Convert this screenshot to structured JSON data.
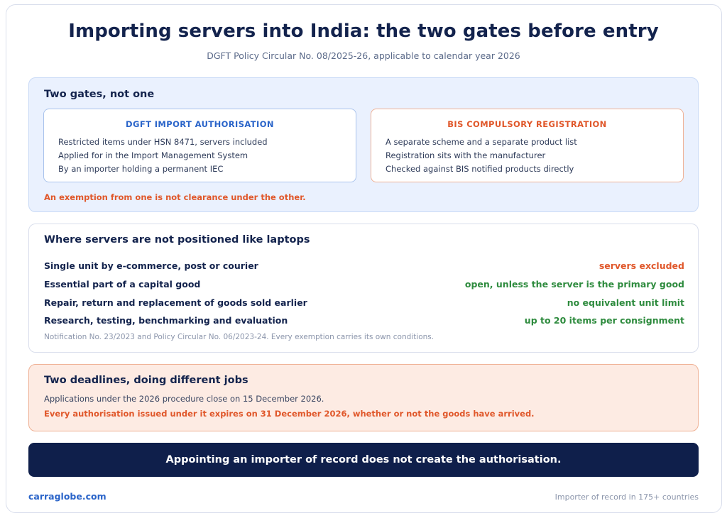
{
  "header": {
    "title": "Importing servers into India: the two gates before entry",
    "subtitle": "DGFT Policy Circular No. 08/2025-26, applicable to calendar year 2026"
  },
  "gates": {
    "heading": "Two gates, not one",
    "dgft": {
      "title": "DGFT IMPORT AUTHORISATION",
      "items": [
        "Restricted items under HSN 8471, servers included",
        "Applied for in the Import Management System",
        "By an importer holding a permanent IEC"
      ]
    },
    "bis": {
      "title": "BIS COMPULSORY REGISTRATION",
      "items": [
        "A separate scheme and a separate product list",
        "Registration sits with the manufacturer",
        "Checked against BIS notified products directly"
      ]
    },
    "note": "An exemption from one is not clearance under the other."
  },
  "exemptions": {
    "heading": "Where servers are not positioned like laptops",
    "rows": [
      {
        "label": "Single unit by e-commerce, post or courier",
        "status": "servers excluded",
        "color": "#e0572a"
      },
      {
        "label": "Essential part of a capital good",
        "status": "open, unless the server is the primary good",
        "color": "#2e8b3e"
      },
      {
        "label": "Repair, return and replacement of goods sold earlier",
        "status": "no equivalent unit limit",
        "color": "#2e8b3e"
      },
      {
        "label": "Research, testing, benchmarking and evaluation",
        "status": "up to 20 items per consignment",
        "color": "#2e8b3e"
      }
    ],
    "footnote": "Notification No. 23/2023 and Policy Circular No. 06/2023-24. Every exemption carries its own conditions."
  },
  "deadlines": {
    "heading": "Two deadlines, doing different jobs",
    "line1": "Applications under the 2026 procedure close on 15 December 2026.",
    "line2": "Every authorisation issued under it expires on 31 December 2026, whether or not the goods have arrived."
  },
  "banner": "Appointing an importer of record does not create the authorisation.",
  "footer": {
    "site": "carraglobe.com",
    "tagline": "Importer of record in 175+ countries"
  }
}
